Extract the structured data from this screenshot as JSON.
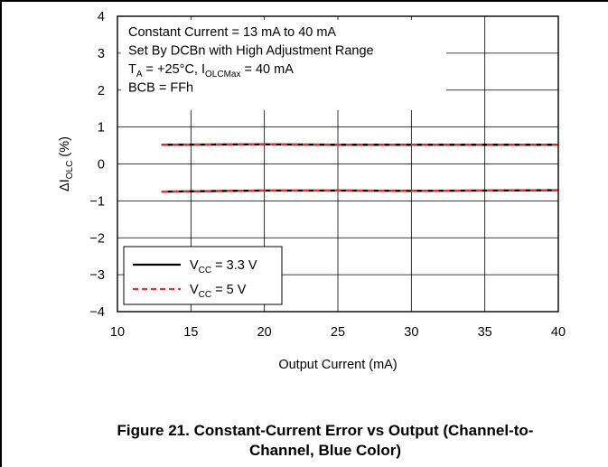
{
  "chart_data": {
    "type": "line",
    "xlabel": "Output Current (mA)",
    "ylabel": "ΔIOLC (%)",
    "xlim": [
      10,
      40
    ],
    "ylim": [
      -4,
      4
    ],
    "xticks": [
      10,
      15,
      20,
      25,
      30,
      35,
      40
    ],
    "yticks": [
      4,
      3,
      2,
      1,
      0,
      -1,
      -2,
      -3,
      -4
    ],
    "grid": true,
    "legend_position": "bottom-left",
    "annotations": [
      "Constant Current = 13 mA to 40 mA",
      "Set By DCBn with High Adjustment Range",
      "TA = +25°C, IOLCMax = 40 mA",
      "BCB = FFh"
    ],
    "series": [
      {
        "name": "VCC = 3.3 V",
        "color": "#000000",
        "style": "solid",
        "lines": [
          {
            "x": [
              13,
              20,
              25,
              30,
              35,
              40
            ],
            "y": [
              0.52,
              0.53,
              0.52,
              0.52,
              0.52,
              0.52
            ]
          },
          {
            "x": [
              13,
              20,
              25,
              30,
              35,
              40
            ],
            "y": [
              -0.75,
              -0.72,
              -0.72,
              -0.73,
              -0.72,
              -0.71
            ]
          }
        ]
      },
      {
        "name": "VCC = 5 V",
        "color": "#e8312c",
        "style": "dashed",
        "lines": [
          {
            "x": [
              13,
              20,
              25,
              30,
              35,
              40
            ],
            "y": [
              0.52,
              0.53,
              0.52,
              0.52,
              0.52,
              0.52
            ]
          },
          {
            "x": [
              13,
              20,
              25,
              30,
              35,
              40
            ],
            "y": [
              -0.75,
              -0.72,
              -0.72,
              -0.73,
              -0.72,
              -0.71
            ]
          }
        ]
      }
    ]
  },
  "caption": {
    "line1": "Figure 21. Constant-Current Error vs Output (Channel-to-",
    "line2": "Channel, Blue Color)"
  }
}
